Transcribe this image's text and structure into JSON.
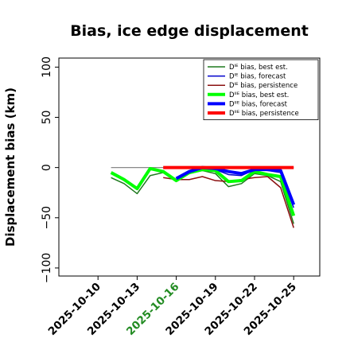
{
  "chart_data": {
    "type": "line",
    "title": "Bias, ice edge displacement",
    "ylabel": "Displacement bias (km)",
    "xlabel": "",
    "ylim": [
      -108,
      109
    ],
    "xlim": [
      "2025-10-07",
      "2025-10-27"
    ],
    "yticks": [
      -100,
      -50,
      0,
      50,
      100
    ],
    "ytick_labels": [
      "−100",
      "−50",
      "0",
      "50",
      "100"
    ],
    "xticks": [
      {
        "date": "2025-10-10",
        "label": "2025-10-10",
        "color": "#000000"
      },
      {
        "date": "2025-10-13",
        "label": "2025-10-13",
        "color": "#000000"
      },
      {
        "date": "2025-10-16",
        "label": "2025-10-16",
        "color": "#228B22"
      },
      {
        "date": "2025-10-19",
        "label": "2025-10-19",
        "color": "#000000"
      },
      {
        "date": "2025-10-22",
        "label": "2025-10-22",
        "color": "#000000"
      },
      {
        "date": "2025-10-25",
        "label": "2025-10-25",
        "color": "#000000"
      }
    ],
    "grid": false,
    "legend_position": "top-right",
    "reference_line": {
      "y": 0,
      "from": "2025-10-11",
      "to": "2025-10-25",
      "color": "#888888"
    },
    "series": [
      {
        "name": "Dᴵᴱ bias, best est.",
        "color": "#1e7a1e",
        "width": 1.5,
        "points": [
          [
            "2025-10-11",
            -10
          ],
          [
            "2025-10-12",
            -16
          ],
          [
            "2025-10-13",
            -26
          ],
          [
            "2025-10-14",
            -8
          ],
          [
            "2025-10-15",
            -5
          ],
          [
            "2025-10-16",
            -12
          ],
          [
            "2025-10-17",
            -6
          ],
          [
            "2025-10-18",
            -3
          ],
          [
            "2025-10-19",
            -6
          ],
          [
            "2025-10-20",
            -19
          ],
          [
            "2025-10-21",
            -16
          ],
          [
            "2025-10-22",
            -6
          ],
          [
            "2025-10-23",
            -8
          ],
          [
            "2025-10-24",
            -14
          ],
          [
            "2025-10-25",
            -56
          ]
        ]
      },
      {
        "name": "Dᴵᴱ bias, forecast",
        "color": "#0000cc",
        "width": 1.5,
        "points": [
          [
            "2025-10-16",
            -10
          ],
          [
            "2025-10-17",
            -3
          ],
          [
            "2025-10-18",
            1
          ],
          [
            "2025-10-19",
            -2
          ],
          [
            "2025-10-20",
            -7
          ],
          [
            "2025-10-21",
            -8
          ],
          [
            "2025-10-22",
            -2
          ],
          [
            "2025-10-23",
            -3
          ],
          [
            "2025-10-24",
            -5
          ],
          [
            "2025-10-25",
            -40
          ]
        ]
      },
      {
        "name": "Dᴵᴱ bias, persistence",
        "color": "#8b1010",
        "width": 1.5,
        "points": [
          [
            "2025-10-15",
            -10
          ],
          [
            "2025-10-16",
            -12
          ],
          [
            "2025-10-17",
            -12
          ],
          [
            "2025-10-18",
            -9
          ],
          [
            "2025-10-19",
            -13
          ],
          [
            "2025-10-20",
            -14
          ],
          [
            "2025-10-21",
            -12
          ],
          [
            "2025-10-22",
            -10
          ],
          [
            "2025-10-23",
            -9
          ],
          [
            "2025-10-24",
            -20
          ],
          [
            "2025-10-25",
            -60
          ]
        ]
      },
      {
        "name": "Dᴵᴵᴱ bias, best est.",
        "color": "#00ff00",
        "width": 4,
        "points": [
          [
            "2025-10-11",
            -5
          ],
          [
            "2025-10-12",
            -12
          ],
          [
            "2025-10-13",
            -21
          ],
          [
            "2025-10-14",
            -1
          ],
          [
            "2025-10-15",
            -4
          ],
          [
            "2025-10-16",
            -13
          ],
          [
            "2025-10-17",
            -5
          ],
          [
            "2025-10-18",
            -2
          ],
          [
            "2025-10-19",
            -3
          ],
          [
            "2025-10-20",
            -14
          ],
          [
            "2025-10-21",
            -13
          ],
          [
            "2025-10-22",
            -4
          ],
          [
            "2025-10-23",
            -7
          ],
          [
            "2025-10-24",
            -9
          ],
          [
            "2025-10-25",
            -48
          ]
        ]
      },
      {
        "name": "Dᴵᴵᴱ bias, forecast",
        "color": "#0000ff",
        "width": 4,
        "points": [
          [
            "2025-10-16",
            -11
          ],
          [
            "2025-10-17",
            -4
          ],
          [
            "2025-10-18",
            0
          ],
          [
            "2025-10-19",
            -1
          ],
          [
            "2025-10-20",
            -4
          ],
          [
            "2025-10-21",
            -6
          ],
          [
            "2025-10-22",
            -2
          ],
          [
            "2025-10-23",
            -2
          ],
          [
            "2025-10-24",
            -3
          ],
          [
            "2025-10-25",
            -37
          ]
        ]
      },
      {
        "name": "Dᴵᴵᴱ bias, persistence",
        "color": "#ff0000",
        "width": 4,
        "points": [
          [
            "2025-10-15",
            0
          ],
          [
            "2025-10-16",
            0
          ],
          [
            "2025-10-17",
            0
          ],
          [
            "2025-10-18",
            0
          ],
          [
            "2025-10-19",
            0
          ],
          [
            "2025-10-20",
            0
          ],
          [
            "2025-10-21",
            0
          ],
          [
            "2025-10-22",
            0
          ],
          [
            "2025-10-23",
            0
          ],
          [
            "2025-10-24",
            0
          ],
          [
            "2025-10-25",
            0
          ]
        ]
      }
    ]
  }
}
